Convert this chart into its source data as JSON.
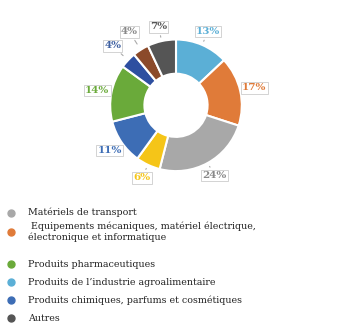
{
  "values": [
    13,
    17,
    24,
    6,
    11,
    14,
    4,
    4,
    7
  ],
  "colors": [
    "#5bafd6",
    "#e07b39",
    "#a8a8a8",
    "#f5c518",
    "#3d6db5",
    "#6aaa3a",
    "#2e4fa0",
    "#8b4a2a",
    "#555555"
  ],
  "pct_labels": [
    "13%",
    "17%",
    "24%",
    "6%",
    "11%",
    "14%",
    "4%",
    "4%",
    "7%"
  ],
  "pct_colors": [
    "#5bafd6",
    "#e07b39",
    "#888888",
    "#f5c518",
    "#3d6db5",
    "#6aaa3a",
    "#3d5fa0",
    "#888888",
    "#555555"
  ],
  "legend_labels": [
    "Matériels de transport",
    " Equipements mécaniques, matériel électrique,\nélectronique et informatique",
    "Produits pharmaceutiques",
    "Produits de l’industrie agroalimentaire",
    "Produits chimiques, parfums et cosmétiques",
    "Autres"
  ],
  "legend_colors": [
    "#a8a8a8",
    "#e07b39",
    "#6aaa3a",
    "#5bafd6",
    "#3d6db5",
    "#555555"
  ],
  "background_color": "#ffffff"
}
